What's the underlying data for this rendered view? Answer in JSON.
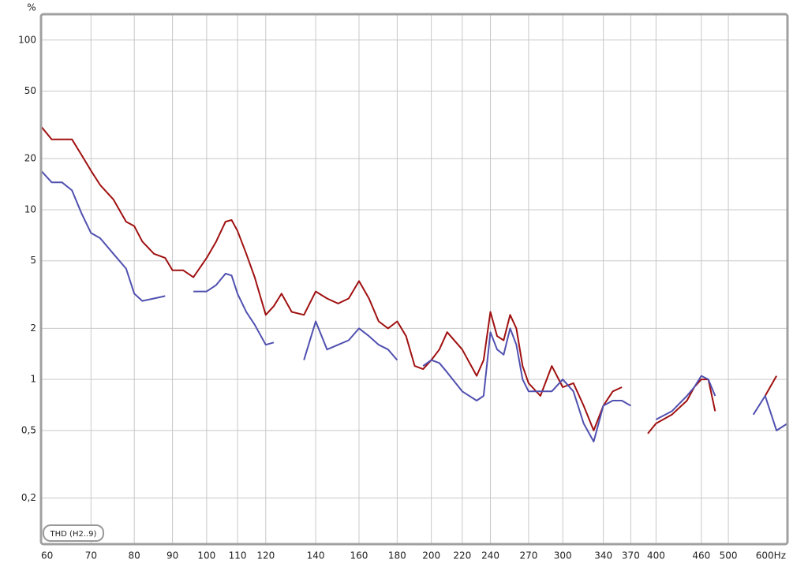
{
  "chart_data": {
    "type": "line",
    "y_unit": "%",
    "legend": "THD (H2..9)",
    "x_scale": "log",
    "y_scale": "log",
    "grid": true,
    "xlim": [
      60,
      600
    ],
    "ylim": [
      0.107,
      142
    ],
    "xticks": [
      60,
      70,
      80,
      90,
      100,
      110,
      120,
      140,
      160,
      180,
      200,
      220,
      240,
      270,
      300,
      340,
      370,
      400,
      460,
      500,
      {
        "value": 600,
        "label": "600Hz"
      }
    ],
    "yticks": [
      100,
      50,
      20,
      10,
      5,
      2,
      1,
      {
        "value": 0.5,
        "label": "0,5"
      },
      {
        "value": 0.2,
        "label": "0,2"
      }
    ],
    "x": [
      60,
      62,
      64,
      66,
      68,
      70,
      72,
      75,
      78,
      80,
      82,
      85,
      88,
      90,
      93,
      96,
      100,
      103,
      106,
      108,
      110,
      113,
      116,
      120,
      123,
      126,
      130,
      135,
      140,
      145,
      150,
      155,
      160,
      165,
      170,
      175,
      180,
      185,
      190,
      195,
      200,
      205,
      210,
      220,
      230,
      235,
      240,
      245,
      250,
      255,
      260,
      265,
      270,
      280,
      290,
      300,
      310,
      320,
      330,
      340,
      350,
      360,
      370,
      380,
      390,
      400,
      420,
      440,
      450,
      460,
      470,
      480,
      500,
      520,
      540,
      560,
      580,
      600
    ],
    "series": [
      {
        "color": "#a01010",
        "values": [
          31,
          26,
          26,
          26,
          21,
          17,
          14,
          11.5,
          8.5,
          8,
          6.5,
          5.5,
          5.2,
          4.4,
          4.4,
          4.0,
          5.2,
          6.5,
          8.5,
          8.7,
          7.5,
          5.5,
          4.0,
          2.4,
          2.7,
          3.2,
          2.5,
          2.4,
          3.3,
          3.0,
          2.8,
          3.0,
          3.8,
          3.0,
          2.2,
          2.0,
          2.2,
          1.8,
          1.2,
          1.15,
          1.3,
          1.5,
          1.9,
          1.5,
          1.05,
          1.3,
          2.5,
          1.8,
          1.7,
          2.4,
          2.0,
          1.2,
          0.95,
          0.8,
          1.2,
          0.9,
          0.95,
          0.7,
          0.5,
          0.7,
          0.85,
          0.9,
          null,
          null,
          0.48,
          0.55,
          0.62,
          0.75,
          0.9,
          1.0,
          1.0,
          0.65,
          null,
          null,
          null,
          0.8,
          1.05,
          null
        ]
      },
      {
        "color": "#5050b0",
        "values": [
          17,
          14.5,
          14.5,
          13,
          9.5,
          7.3,
          6.8,
          5.5,
          4.5,
          3.2,
          2.9,
          3.0,
          3.1,
          null,
          null,
          3.3,
          3.3,
          3.6,
          4.2,
          4.1,
          3.2,
          2.5,
          2.1,
          1.6,
          1.65,
          null,
          null,
          1.3,
          2.2,
          1.5,
          1.6,
          1.7,
          2.0,
          1.8,
          1.6,
          1.5,
          1.3,
          null,
          null,
          1.2,
          1.3,
          1.25,
          1.1,
          0.85,
          0.75,
          0.8,
          1.9,
          1.5,
          1.4,
          2.0,
          1.6,
          1.0,
          0.85,
          0.85,
          0.85,
          1.0,
          0.85,
          0.55,
          0.43,
          0.7,
          0.75,
          0.75,
          0.7,
          null,
          null,
          0.58,
          0.65,
          0.8,
          0.9,
          1.05,
          1.0,
          0.8,
          null,
          null,
          0.62,
          0.8,
          0.5,
          0.55
        ]
      }
    ]
  }
}
